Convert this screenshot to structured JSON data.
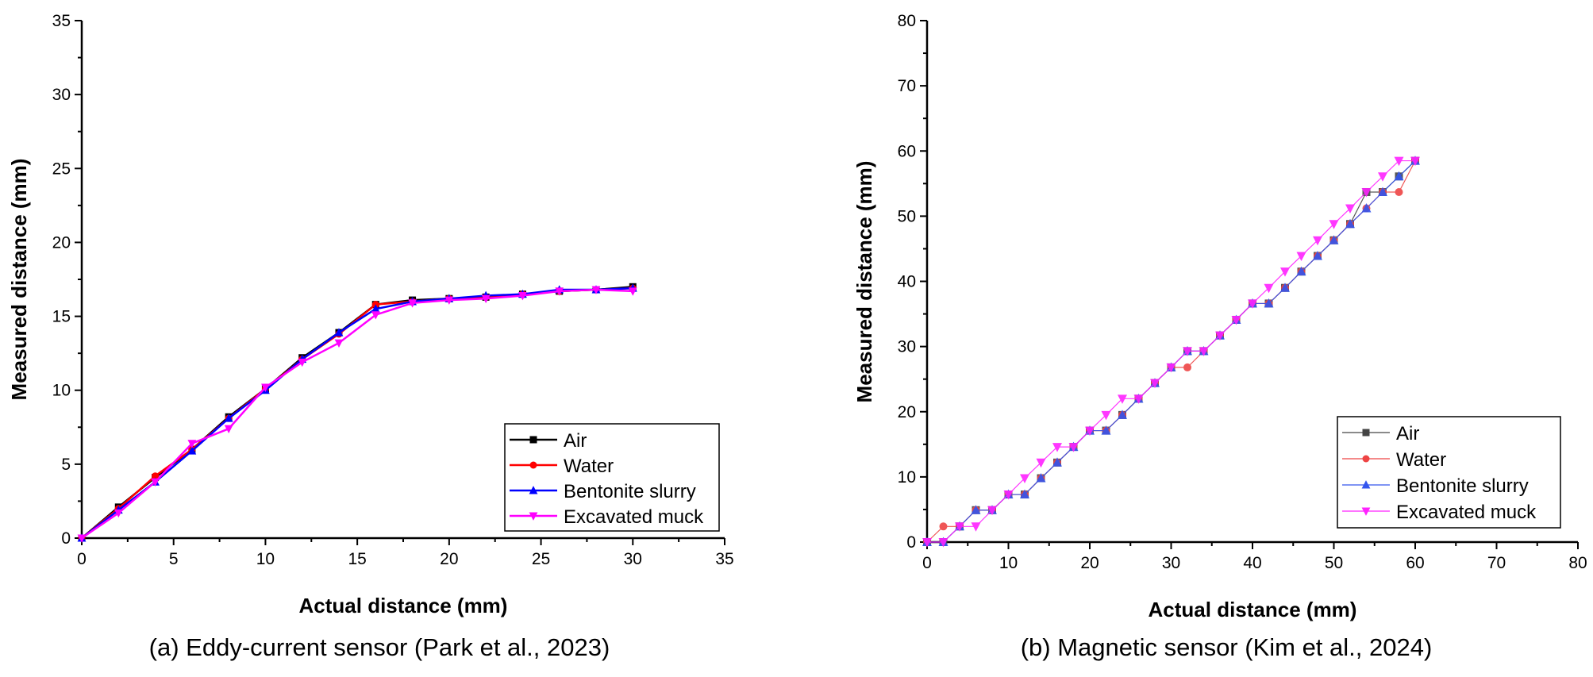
{
  "chart_data": [
    {
      "type": "line",
      "caption": "(a) Eddy-current sensor (Park et al., 2023)",
      "xlabel": "Actual distance (mm)",
      "ylabel": "Measured distance (mm)",
      "xlim": [
        0,
        35
      ],
      "ylim": [
        0,
        35
      ],
      "xticks": [
        0,
        5,
        10,
        15,
        20,
        25,
        30,
        35
      ],
      "yticks": [
        0,
        5,
        10,
        15,
        20,
        25,
        30,
        35
      ],
      "grid": false,
      "legend_position": "bottom-right",
      "series": [
        {
          "name": "Air",
          "color": "#000000",
          "marker": "square",
          "points": [
            [
              0,
              0
            ],
            [
              2,
              2.1
            ],
            [
              4,
              4.1
            ],
            [
              6,
              6.0
            ],
            [
              8,
              8.2
            ],
            [
              10,
              10.1
            ],
            [
              12,
              12.2
            ],
            [
              14,
              13.9
            ],
            [
              16,
              15.8
            ],
            [
              18,
              16.1
            ],
            [
              20,
              16.2
            ],
            [
              22,
              16.3
            ],
            [
              24,
              16.5
            ],
            [
              26,
              16.7
            ],
            [
              28,
              16.8
            ],
            [
              30,
              17.0
            ]
          ]
        },
        {
          "name": "Water",
          "color": "#ff0000",
          "marker": "circle",
          "points": [
            [
              0,
              0
            ],
            [
              2,
              2.0
            ],
            [
              4,
              4.2
            ],
            [
              6,
              6.0
            ],
            [
              8,
              8.1
            ],
            [
              10,
              10.1
            ],
            [
              12,
              12.1
            ],
            [
              14,
              13.8
            ],
            [
              16,
              15.8
            ],
            [
              18,
              16.0
            ],
            [
              20,
              16.2
            ],
            [
              22,
              16.3
            ],
            [
              24,
              16.5
            ],
            [
              26,
              16.7
            ],
            [
              28,
              16.8
            ],
            [
              30,
              16.9
            ]
          ]
        },
        {
          "name": "Bentonite slurry",
          "color": "#0000ff",
          "marker": "triangle-up",
          "points": [
            [
              0,
              0
            ],
            [
              2,
              1.9
            ],
            [
              4,
              3.8
            ],
            [
              6,
              5.9
            ],
            [
              8,
              8.1
            ],
            [
              10,
              10.0
            ],
            [
              12,
              12.1
            ],
            [
              14,
              13.9
            ],
            [
              16,
              15.5
            ],
            [
              18,
              16.0
            ],
            [
              20,
              16.2
            ],
            [
              22,
              16.4
            ],
            [
              24,
              16.5
            ],
            [
              26,
              16.8
            ],
            [
              28,
              16.8
            ],
            [
              30,
              16.9
            ]
          ]
        },
        {
          "name": "Excavated muck",
          "color": "#ff00ff",
          "marker": "triangle-down",
          "points": [
            [
              0,
              0
            ],
            [
              2,
              1.7
            ],
            [
              4,
              3.8
            ],
            [
              6,
              6.4
            ],
            [
              8,
              7.4
            ],
            [
              10,
              10.2
            ],
            [
              12,
              11.9
            ],
            [
              14,
              13.2
            ],
            [
              16,
              15.1
            ],
            [
              18,
              15.9
            ],
            [
              20,
              16.1
            ],
            [
              22,
              16.2
            ],
            [
              24,
              16.4
            ],
            [
              26,
              16.7
            ],
            [
              28,
              16.8
            ],
            [
              30,
              16.7
            ]
          ]
        }
      ]
    },
    {
      "type": "line",
      "caption": "(b) Magnetic sensor (Kim et al., 2024)",
      "xlabel": "Actual distance (mm)",
      "ylabel": "Measured distance (mm)",
      "xlim": [
        0,
        80
      ],
      "ylim": [
        0,
        80
      ],
      "xticks": [
        0,
        10,
        20,
        30,
        40,
        50,
        60,
        70,
        80
      ],
      "yticks": [
        0,
        10,
        20,
        30,
        40,
        50,
        60,
        70,
        80
      ],
      "grid": false,
      "legend_position": "bottom-right",
      "series": [
        {
          "name": "Air",
          "color": "#444444",
          "marker": "square",
          "points": [
            [
              0,
              0
            ],
            [
              2,
              0
            ],
            [
              4,
              2.4
            ],
            [
              6,
              4.9
            ],
            [
              8,
              4.9
            ],
            [
              10,
              7.3
            ],
            [
              12,
              7.3
            ],
            [
              14,
              9.8
            ],
            [
              16,
              12.2
            ],
            [
              18,
              14.6
            ],
            [
              20,
              17.1
            ],
            [
              22,
              17.1
            ],
            [
              24,
              19.5
            ],
            [
              26,
              22.0
            ],
            [
              28,
              24.4
            ],
            [
              30,
              26.8
            ],
            [
              32,
              29.3
            ],
            [
              34,
              29.3
            ],
            [
              36,
              31.7
            ],
            [
              38,
              34.1
            ],
            [
              40,
              36.6
            ],
            [
              42,
              36.6
            ],
            [
              44,
              39.0
            ],
            [
              46,
              41.5
            ],
            [
              48,
              43.9
            ],
            [
              50,
              46.3
            ],
            [
              52,
              48.8
            ],
            [
              54,
              53.7
            ],
            [
              56,
              53.7
            ],
            [
              58,
              56.1
            ],
            [
              60,
              58.5
            ]
          ]
        },
        {
          "name": "Water",
          "color": "#ee4444",
          "marker": "circle",
          "points": [
            [
              0,
              0
            ],
            [
              2,
              2.4
            ],
            [
              4,
              2.4
            ],
            [
              6,
              4.9
            ],
            [
              8,
              4.9
            ],
            [
              10,
              7.3
            ],
            [
              12,
              7.3
            ],
            [
              14,
              9.8
            ],
            [
              16,
              12.2
            ],
            [
              18,
              14.6
            ],
            [
              20,
              17.1
            ],
            [
              22,
              17.1
            ],
            [
              24,
              19.5
            ],
            [
              26,
              22.0
            ],
            [
              28,
              24.4
            ],
            [
              30,
              26.8
            ],
            [
              32,
              26.8
            ],
            [
              34,
              29.3
            ],
            [
              36,
              31.7
            ],
            [
              38,
              34.1
            ],
            [
              40,
              36.6
            ],
            [
              42,
              36.6
            ],
            [
              44,
              39.0
            ],
            [
              46,
              41.5
            ],
            [
              48,
              43.9
            ],
            [
              50,
              46.3
            ],
            [
              52,
              48.8
            ],
            [
              54,
              51.2
            ],
            [
              56,
              53.7
            ],
            [
              58,
              53.7
            ],
            [
              60,
              58.5
            ]
          ]
        },
        {
          "name": "Bentonite slurry",
          "color": "#3355ee",
          "marker": "triangle-up",
          "points": [
            [
              0,
              0
            ],
            [
              2,
              0
            ],
            [
              4,
              2.4
            ],
            [
              6,
              4.9
            ],
            [
              8,
              4.9
            ],
            [
              10,
              7.3
            ],
            [
              12,
              7.3
            ],
            [
              14,
              9.8
            ],
            [
              16,
              12.2
            ],
            [
              18,
              14.6
            ],
            [
              20,
              17.1
            ],
            [
              22,
              17.1
            ],
            [
              24,
              19.5
            ],
            [
              26,
              22.0
            ],
            [
              28,
              24.4
            ],
            [
              30,
              26.8
            ],
            [
              32,
              29.3
            ],
            [
              34,
              29.3
            ],
            [
              36,
              31.7
            ],
            [
              38,
              34.1
            ],
            [
              40,
              36.6
            ],
            [
              42,
              36.6
            ],
            [
              44,
              39.0
            ],
            [
              46,
              41.5
            ],
            [
              48,
              43.9
            ],
            [
              50,
              46.3
            ],
            [
              52,
              48.8
            ],
            [
              54,
              51.2
            ],
            [
              56,
              53.7
            ],
            [
              58,
              56.1
            ],
            [
              60,
              58.5
            ]
          ]
        },
        {
          "name": "Excavated muck",
          "color": "#ff22ff",
          "marker": "triangle-down",
          "points": [
            [
              0,
              0
            ],
            [
              2,
              0
            ],
            [
              4,
              2.4
            ],
            [
              6,
              2.4
            ],
            [
              8,
              4.9
            ],
            [
              10,
              7.3
            ],
            [
              12,
              9.8
            ],
            [
              14,
              12.2
            ],
            [
              16,
              14.6
            ],
            [
              18,
              14.6
            ],
            [
              20,
              17.1
            ],
            [
              22,
              19.5
            ],
            [
              24,
              22.0
            ],
            [
              26,
              22.0
            ],
            [
              28,
              24.4
            ],
            [
              30,
              26.8
            ],
            [
              32,
              29.3
            ],
            [
              34,
              29.3
            ],
            [
              36,
              31.7
            ],
            [
              38,
              34.1
            ],
            [
              40,
              36.6
            ],
            [
              42,
              39.0
            ],
            [
              44,
              41.5
            ],
            [
              46,
              43.9
            ],
            [
              48,
              46.3
            ],
            [
              50,
              48.8
            ],
            [
              52,
              51.2
            ],
            [
              54,
              53.7
            ],
            [
              56,
              56.1
            ],
            [
              58,
              58.5
            ],
            [
              60,
              58.5
            ]
          ]
        }
      ]
    }
  ]
}
